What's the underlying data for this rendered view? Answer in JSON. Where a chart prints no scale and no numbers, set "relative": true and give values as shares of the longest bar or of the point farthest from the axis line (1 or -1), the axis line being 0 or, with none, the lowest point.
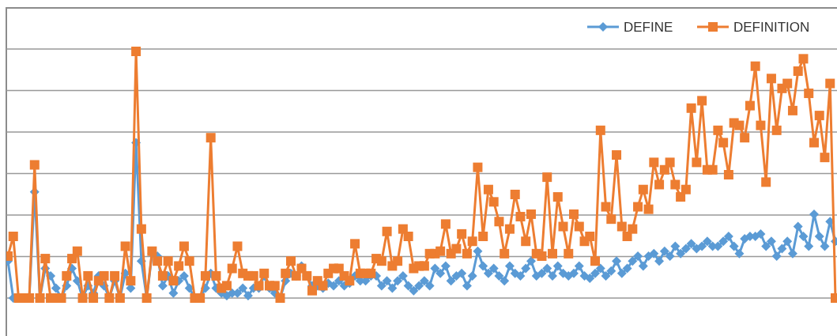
{
  "chart_data": {
    "type": "line",
    "relative": true,
    "grid": true,
    "legend": "top right",
    "line_style": "solid",
    "categories": [
      null,
      null,
      null,
      null,
      null,
      null,
      null,
      null,
      null,
      null,
      null,
      null,
      null,
      null,
      null,
      null,
      null,
      null,
      null,
      null,
      null,
      null,
      null,
      null,
      null,
      null,
      null,
      null,
      null,
      null,
      null,
      null,
      null,
      null,
      null,
      null,
      null,
      null,
      null,
      null,
      null,
      null,
      null,
      null,
      null,
      null,
      null,
      null,
      null,
      null,
      null,
      null,
      null,
      null,
      null,
      null,
      null,
      null,
      null,
      null,
      null,
      null,
      null,
      null,
      null,
      null,
      null,
      null,
      null,
      null,
      null,
      null,
      null,
      null,
      null,
      null,
      null,
      null,
      null,
      null,
      null,
      null,
      null,
      null,
      null,
      null,
      null,
      null,
      null,
      null,
      null,
      null,
      null,
      null,
      null,
      null,
      null,
      null,
      null,
      null,
      null,
      null,
      null,
      null,
      null,
      null,
      null,
      null,
      null,
      null,
      null,
      null,
      null,
      null,
      null,
      null,
      null,
      null,
      null,
      null,
      null,
      null,
      null,
      null,
      null,
      null,
      null,
      null,
      null,
      null,
      null,
      null,
      null,
      null,
      null,
      null,
      null,
      null,
      null,
      null,
      null,
      null,
      null,
      null,
      null,
      null,
      null,
      null,
      null,
      null,
      null,
      null,
      null,
      null,
      null,
      null
    ],
    "series": [
      {
        "name": "DEFINE",
        "color": "#5b9bd5",
        "marker": "diamond",
        "values": [
          0.15,
          0,
          0,
          0,
          0,
          0.43,
          0,
          0.12,
          0.09,
          0.04,
          0,
          0.05,
          0.12,
          0.07,
          0,
          0.05,
          0.02,
          0.09,
          0.05,
          0,
          0.07,
          0,
          0.1,
          0.04,
          0.63,
          0.15,
          0,
          0.18,
          0.17,
          0.05,
          0.09,
          0.02,
          0.07,
          0.09,
          0.04,
          0,
          0,
          0.04,
          0.1,
          0.04,
          0.02,
          0.01,
          0.02,
          0.02,
          0.04,
          0.01,
          0.04,
          0.04,
          0.09,
          0.04,
          0.02,
          0,
          0.07,
          0.1,
          0.09,
          0.13,
          0.09,
          0.05,
          0.05,
          0.04,
          0.06,
          0.05,
          0.07,
          0.05,
          0.06,
          0.09,
          0.07,
          0.07,
          0.09,
          0.09,
          0.05,
          0.07,
          0.04,
          0.07,
          0.09,
          0.05,
          0.03,
          0.05,
          0.07,
          0.05,
          0.12,
          0.1,
          0.13,
          0.07,
          0.09,
          0.1,
          0.05,
          0.09,
          0.19,
          0.13,
          0.1,
          0.12,
          0.09,
          0.07,
          0.13,
          0.1,
          0.09,
          0.12,
          0.15,
          0.09,
          0.1,
          0.12,
          0.09,
          0.13,
          0.1,
          0.09,
          0.1,
          0.13,
          0.09,
          0.08,
          0.1,
          0.12,
          0.09,
          0.11,
          0.15,
          0.1,
          0.12,
          0.15,
          0.17,
          0.13,
          0.17,
          0.18,
          0.15,
          0.19,
          0.17,
          0.21,
          0.18,
          0.2,
          0.22,
          0.2,
          0.21,
          0.23,
          0.21,
          0.21,
          0.23,
          0.25,
          0.21,
          0.18,
          0.24,
          0.25,
          0.25,
          0.26,
          0.21,
          0.23,
          0.17,
          0.2,
          0.23,
          0.18,
          0.29,
          0.25,
          0.21,
          0.34,
          0.25,
          0.21,
          0.31,
          0.23
        ]
      },
      {
        "name": "DEFINITION",
        "color": "#ed7d31",
        "marker": "square",
        "values": [
          0.17,
          0.25,
          0,
          0,
          0,
          0.54,
          0,
          0.16,
          0,
          0,
          0,
          0.09,
          0.16,
          0.19,
          0,
          0.09,
          0,
          0.07,
          0.09,
          0,
          0.09,
          0,
          0.21,
          0.07,
          1.0,
          0.28,
          0,
          0.19,
          0.15,
          0.09,
          0.15,
          0.07,
          0.13,
          0.21,
          0.15,
          0,
          0,
          0.09,
          0.65,
          0.09,
          0.04,
          0.05,
          0.12,
          0.21,
          0.1,
          0.09,
          0.09,
          0.05,
          0.1,
          0.05,
          0.05,
          0,
          0.1,
          0.15,
          0.09,
          0.12,
          0.09,
          0.03,
          0.07,
          0.05,
          0.1,
          0.12,
          0.12,
          0.09,
          0.07,
          0.22,
          0.1,
          0.1,
          0.1,
          0.16,
          0.15,
          0.27,
          0.13,
          0.15,
          0.28,
          0.25,
          0.12,
          0.13,
          0.13,
          0.18,
          0.18,
          0.19,
          0.3,
          0.18,
          0.2,
          0.26,
          0.18,
          0.23,
          0.53,
          0.25,
          0.44,
          0.39,
          0.31,
          0.18,
          0.28,
          0.42,
          0.33,
          0.23,
          0.34,
          0.18,
          0.17,
          0.49,
          0.18,
          0.41,
          0.29,
          0.18,
          0.34,
          0.29,
          0.23,
          0.25,
          0.15,
          0.68,
          0.37,
          0.32,
          0.58,
          0.29,
          0.25,
          0.28,
          0.37,
          0.44,
          0.36,
          0.55,
          0.46,
          0.52,
          0.55,
          0.46,
          0.41,
          0.44,
          0.77,
          0.55,
          0.8,
          0.52,
          0.52,
          0.68,
          0.63,
          0.5,
          0.71,
          0.7,
          0.65,
          0.78,
          0.94,
          0.7,
          0.47,
          0.89,
          0.68,
          0.85,
          0.87,
          0.76,
          0.92,
          0.97,
          0.83,
          0.63,
          0.74,
          0.57,
          0.87,
          0
        ]
      }
    ]
  }
}
